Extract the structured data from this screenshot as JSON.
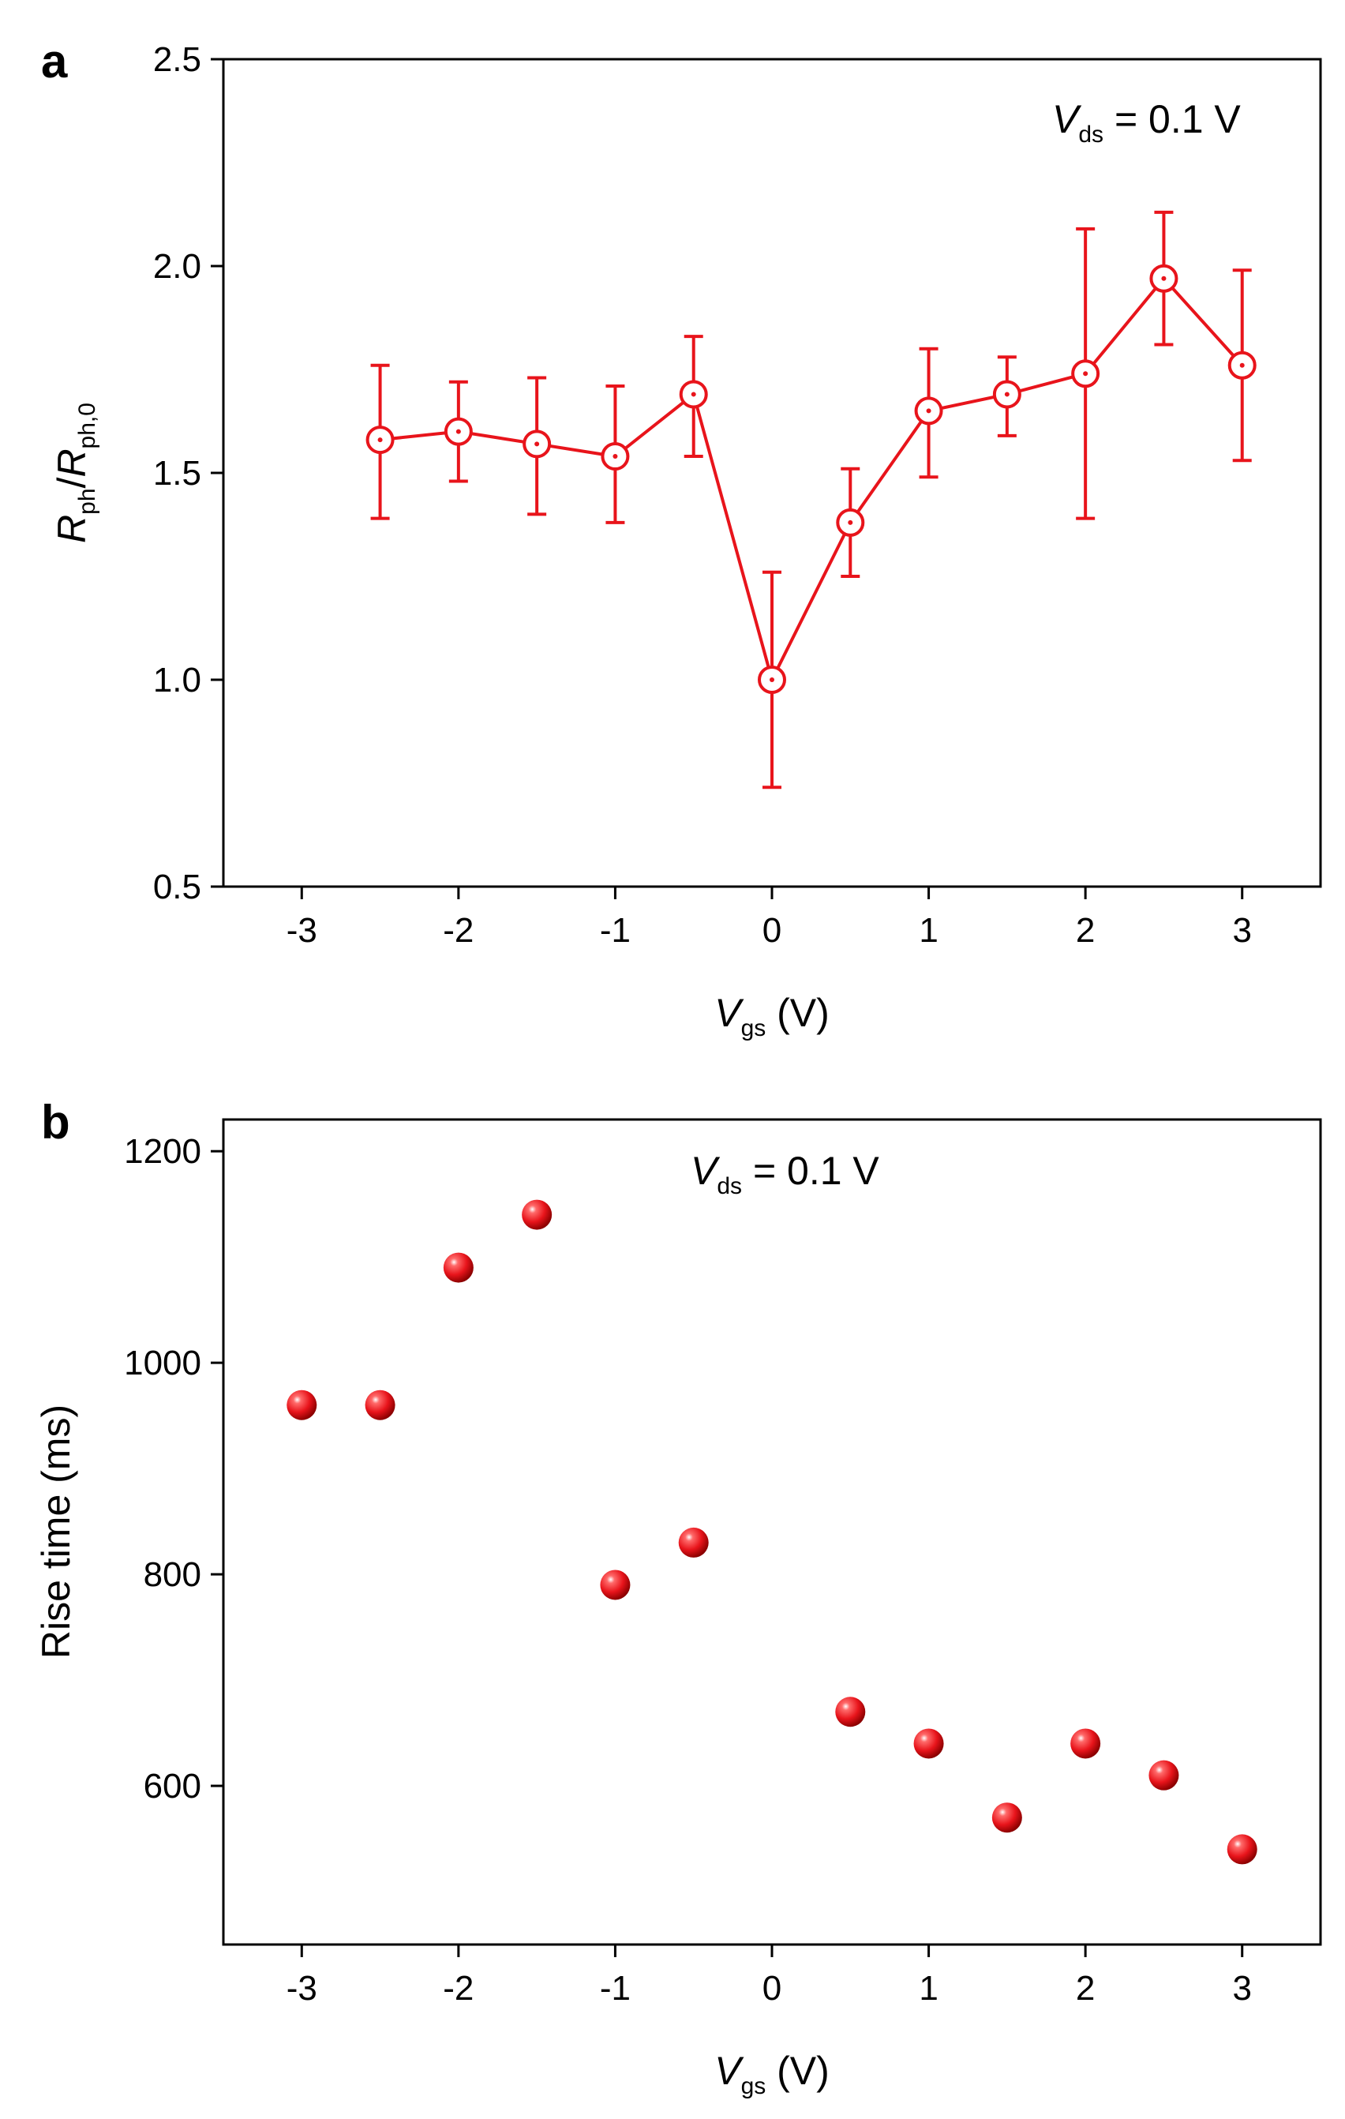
{
  "chart_data": [
    {
      "type": "line",
      "panel_label": "a",
      "title": "",
      "annotation": {
        "var": "V",
        "sub": "ds",
        "rest": " = 0.1 V"
      },
      "xlabel": {
        "var": "V",
        "sub": "gs",
        "rest": " (V)"
      },
      "ylabel": {
        "var1": "R",
        "sub1": "ph",
        "slash": "/",
        "var2": "R",
        "sub2": "ph,0"
      },
      "xlim": [
        -3.5,
        3.5
      ],
      "ylim": [
        0.5,
        2.5
      ],
      "xticks": [
        -3,
        -2,
        -1,
        0,
        1,
        2,
        3
      ],
      "xtick_labels": [
        "-3",
        "-2",
        "-1",
        "0",
        "1",
        "2",
        "3"
      ],
      "yticks": [
        0.5,
        1.0,
        1.5,
        2.0,
        2.5
      ],
      "ytick_labels": [
        "0.5",
        "1.0",
        "1.5",
        "2.0",
        "2.5"
      ],
      "color": "#e8141b",
      "marker": "open-circle-dot",
      "series": [
        {
          "x": [
            -2.5,
            -2,
            -1.5,
            -1,
            -0.5,
            0,
            0.5,
            1,
            1.5,
            2,
            2.5,
            3
          ],
          "y": [
            1.58,
            1.6,
            1.57,
            1.54,
            1.69,
            1.0,
            1.38,
            1.65,
            1.69,
            1.74,
            1.97,
            1.76
          ],
          "err_high": [
            1.76,
            1.72,
            1.73,
            1.71,
            1.83,
            1.26,
            1.51,
            1.8,
            1.78,
            2.09,
            2.13,
            1.99
          ],
          "err_low": [
            1.39,
            1.48,
            1.4,
            1.38,
            1.54,
            0.74,
            1.25,
            1.49,
            1.59,
            1.39,
            1.81,
            1.53
          ]
        }
      ]
    },
    {
      "type": "scatter",
      "panel_label": "b",
      "title": "",
      "annotation": {
        "var": "V",
        "sub": "ds",
        "rest": " = 0.1 V"
      },
      "xlabel": {
        "var": "V",
        "sub": "gs",
        "rest": " (V)"
      },
      "ylabel": {
        "text": "Rise time (ms)"
      },
      "xlim": [
        -3.5,
        3.5
      ],
      "ylim": [
        450,
        1230
      ],
      "xticks": [
        -3,
        -2,
        -1,
        0,
        1,
        2,
        3
      ],
      "xtick_labels": [
        "-3",
        "-2",
        "-1",
        "0",
        "1",
        "2",
        "3"
      ],
      "yticks": [
        600,
        800,
        1000,
        1200
      ],
      "ytick_labels": [
        "600",
        "800",
        "1000",
        "1200"
      ],
      "color": "#e8141b",
      "marker": "filled-sphere",
      "series": [
        {
          "x": [
            -3,
            -2.5,
            -2,
            -1.5,
            -1,
            -0.5,
            0.5,
            1,
            1.5,
            2,
            2.5,
            3
          ],
          "y": [
            960,
            960,
            1090,
            1140,
            790,
            830,
            670,
            640,
            570,
            640,
            610,
            540
          ]
        }
      ]
    }
  ]
}
